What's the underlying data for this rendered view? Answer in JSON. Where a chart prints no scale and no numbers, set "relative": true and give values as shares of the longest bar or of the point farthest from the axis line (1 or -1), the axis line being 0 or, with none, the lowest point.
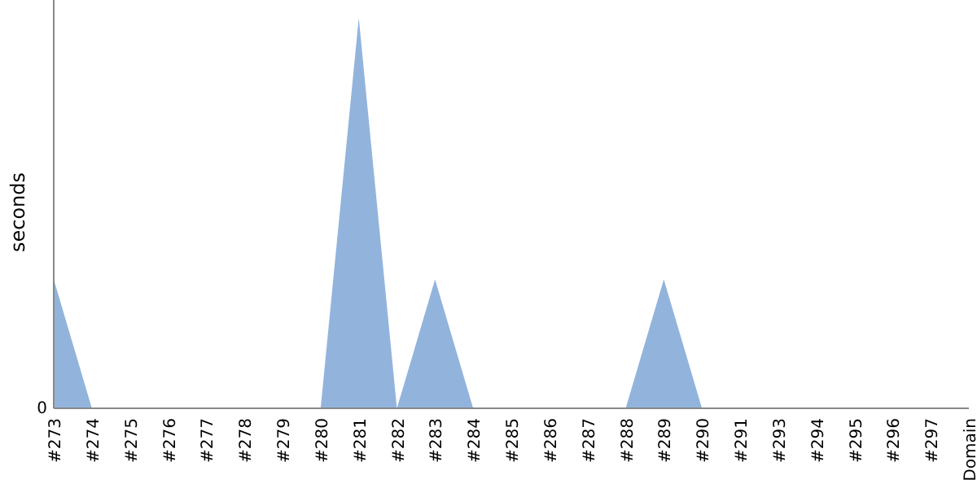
{
  "chart_data": {
    "type": "area",
    "relative": true,
    "ylabel": "seconds",
    "color": "#92b4dc",
    "categories": [
      "#273",
      "#274",
      "#275",
      "#276",
      "#277",
      "#278",
      "#279",
      "#280",
      "#281",
      "#282",
      "#283",
      "#284",
      "#285",
      "#286",
      "#287",
      "#288",
      "#289",
      "#290",
      "#291",
      "#293",
      "#294",
      "#295",
      "#296",
      "#297",
      "Domain"
    ],
    "values": [
      0.33,
      0,
      0,
      0,
      0,
      0,
      0,
      0,
      1,
      0,
      0.33,
      0,
      0,
      0,
      0,
      0,
      0.33,
      0,
      0,
      0,
      0,
      0,
      0,
      0,
      0
    ],
    "annotations": [
      "0"
    ]
  }
}
